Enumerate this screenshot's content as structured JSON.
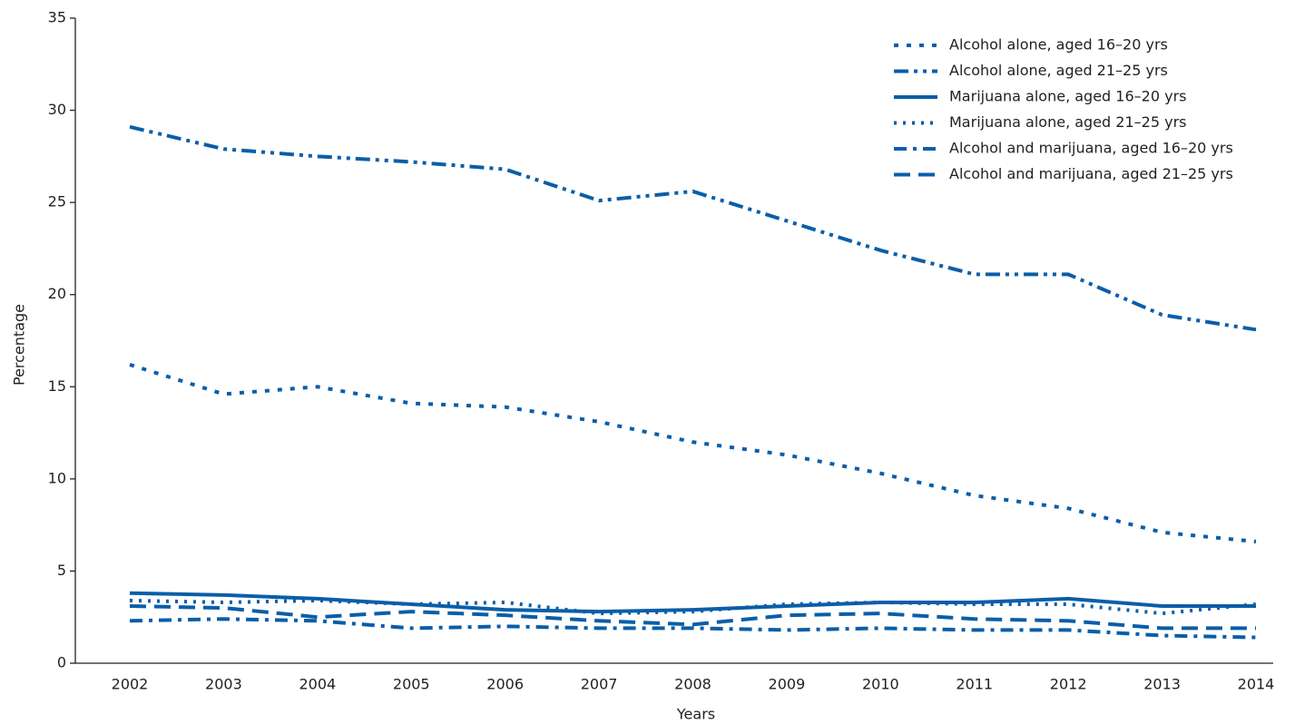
{
  "chart_data": {
    "type": "line",
    "x_label": "Years",
    "y_label": "Percentage",
    "categories": [
      "2002",
      "2003",
      "2004",
      "2005",
      "2006",
      "2007",
      "2008",
      "2009",
      "2010",
      "2011",
      "2012",
      "2013",
      "2014"
    ],
    "ylim": [
      0,
      35
    ],
    "yticks": [
      0,
      5,
      10,
      15,
      20,
      25,
      30,
      35
    ],
    "legend": "top-right",
    "series": [
      {
        "name": "Alcohol alone, aged 16–20 yrs",
        "color": "#0a5ea8",
        "style": "short-dash",
        "values": [
          16.2,
          14.6,
          15.0,
          14.1,
          13.9,
          13.1,
          12.0,
          11.3,
          10.3,
          9.1,
          8.4,
          7.1,
          6.6
        ]
      },
      {
        "name": "Alcohol alone, aged 21–25 yrs",
        "color": "#0a5ea8",
        "style": "dash-dot-dot",
        "values": [
          29.1,
          27.9,
          27.5,
          27.2,
          26.8,
          25.1,
          25.6,
          24.0,
          22.4,
          21.1,
          21.1,
          18.9,
          18.1
        ]
      },
      {
        "name": "Marijuana alone, aged 16–20 yrs",
        "color": "#0a5ea8",
        "style": "solid",
        "values": [
          3.8,
          3.7,
          3.5,
          3.2,
          2.9,
          2.8,
          2.9,
          3.1,
          3.3,
          3.3,
          3.5,
          3.1,
          3.1
        ]
      },
      {
        "name": "Marijuana alone, aged 21–25 yrs",
        "color": "#0a5ea8",
        "style": "dotted",
        "values": [
          3.4,
          3.3,
          3.4,
          3.2,
          3.3,
          2.7,
          2.8,
          3.2,
          3.3,
          3.2,
          3.2,
          2.7,
          3.2
        ]
      },
      {
        "name": "Alcohol and marijuana, aged 16–20 yrs",
        "color": "#0a5ea8",
        "style": "dash-dot",
        "values": [
          2.3,
          2.4,
          2.3,
          1.9,
          2.0,
          1.9,
          1.9,
          1.8,
          1.9,
          1.8,
          1.8,
          1.5,
          1.4
        ]
      },
      {
        "name": "Alcohol and marijuana, aged 21–25 yrs",
        "color": "#0a5ea8",
        "style": "long-dash",
        "values": [
          3.1,
          3.0,
          2.5,
          2.8,
          2.6,
          2.3,
          2.1,
          2.6,
          2.7,
          2.4,
          2.3,
          1.9,
          1.9
        ]
      }
    ]
  }
}
